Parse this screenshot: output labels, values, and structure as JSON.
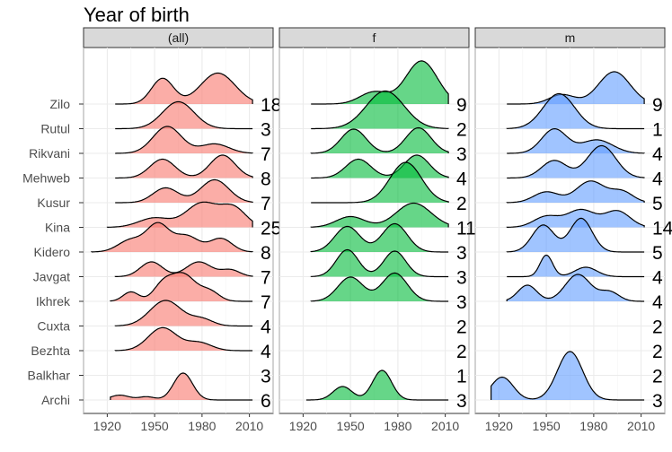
{
  "chart_data": {
    "type": "ridgeline",
    "title": "Year of birth",
    "xlim": [
      1905,
      2025
    ],
    "x_ticks": [
      1920,
      1950,
      1980,
      2010
    ],
    "grid": true,
    "categories": [
      "Archi",
      "Balkhar",
      "Bezhta",
      "Cuxta",
      "Ikhrek",
      "Javgat",
      "Kidero",
      "Kina",
      "Kusur",
      "Mehweb",
      "Rikvani",
      "Rutul",
      "Zilo"
    ],
    "panels": [
      {
        "label": "(all)",
        "color": "#F8766D",
        "rows": [
          {
            "name": "Archi",
            "count": "6",
            "range": [
              1922,
              2012
            ],
            "peaks": [
              [
                1928,
                0.18,
                6
              ],
              [
                1945,
                0.12,
                5
              ],
              [
                1968,
                1.0,
                6
              ]
            ]
          },
          {
            "name": "Balkhar",
            "count": "3",
            "range": [
              null,
              null
            ],
            "peaks": []
          },
          {
            "name": "Bezhta",
            "count": "4",
            "range": [
              1925,
              2012
            ],
            "peaks": [
              [
                1955,
                0.85,
                9
              ],
              [
                1978,
                0.3,
                8
              ]
            ]
          },
          {
            "name": "Cuxta",
            "count": "4",
            "range": [
              1925,
              2012
            ],
            "peaks": [
              [
                1957,
                0.95,
                10
              ],
              [
                1980,
                0.25,
                7
              ]
            ]
          },
          {
            "name": "Ikhrek",
            "count": "7",
            "range": [
              1922,
              2012
            ],
            "peaks": [
              [
                1935,
                0.35,
                5
              ],
              [
                1955,
                0.55,
                6
              ],
              [
                1968,
                1.0,
                8
              ],
              [
                1985,
                0.35,
                6
              ]
            ]
          },
          {
            "name": "Javgat",
            "count": "7",
            "range": [
              1925,
              2012
            ],
            "peaks": [
              [
                1948,
                0.55,
                7
              ],
              [
                1978,
                0.55,
                8
              ],
              [
                1998,
                0.25,
                6
              ]
            ]
          },
          {
            "name": "Kidero",
            "count": "8",
            "range": [
              1910,
              2012
            ],
            "peaks": [
              [
                1935,
                0.45,
                8
              ],
              [
                1952,
                1.0,
                7
              ],
              [
                1970,
                0.6,
                8
              ],
              [
                1992,
                0.5,
                7
              ]
            ]
          },
          {
            "name": "Kina",
            "count": "25",
            "range": [
              1920,
              2012
            ],
            "peaks": [
              [
                1950,
                0.35,
                10
              ],
              [
                1980,
                0.9,
                10
              ],
              [
                2000,
                0.7,
                8
              ]
            ]
          },
          {
            "name": "Kusur",
            "count": "7",
            "range": [
              1925,
              2012
            ],
            "peaks": [
              [
                1957,
                0.55,
                8
              ],
              [
                1988,
                0.85,
                9
              ]
            ]
          },
          {
            "name": "Mehweb",
            "count": "8",
            "range": [
              1925,
              2012
            ],
            "peaks": [
              [
                1955,
                0.7,
                8
              ],
              [
                1993,
                0.85,
                8
              ]
            ]
          },
          {
            "name": "Rikvani",
            "count": "7",
            "range": [
              1925,
              2012
            ],
            "peaks": [
              [
                1958,
                1.0,
                9
              ],
              [
                1988,
                0.35,
                9
              ]
            ]
          },
          {
            "name": "Rutul",
            "count": "3",
            "range": [
              1925,
              2012
            ],
            "peaks": [
              [
                1965,
                1.0,
                10
              ]
            ]
          },
          {
            "name": "Zilo",
            "count": "18",
            "range": [
              1925,
              2012
            ],
            "peaks": [
              [
                1955,
                0.95,
                7
              ],
              [
                1990,
                1.15,
                11
              ]
            ]
          }
        ]
      },
      {
        "label": "f",
        "color": "#00BA38",
        "rows": [
          {
            "name": "Archi",
            "count": "3",
            "range": [
              1922,
              2012
            ],
            "peaks": [
              [
                1945,
                0.5,
                6
              ],
              [
                1970,
                1.1,
                6
              ]
            ]
          },
          {
            "name": "Balkhar",
            "count": "1",
            "range": [
              null,
              null
            ],
            "peaks": []
          },
          {
            "name": "Bezhta",
            "count": "2",
            "range": [
              null,
              null
            ],
            "peaks": []
          },
          {
            "name": "Cuxta",
            "count": "2",
            "range": [
              null,
              null
            ],
            "peaks": []
          },
          {
            "name": "Ikhrek",
            "count": "3",
            "range": [
              1925,
              2012
            ],
            "peaks": [
              [
                1950,
                0.9,
                8
              ],
              [
                1978,
                1.05,
                8
              ]
            ]
          },
          {
            "name": "Javgat",
            "count": "3",
            "range": [
              1925,
              2012
            ],
            "peaks": [
              [
                1948,
                1.0,
                7
              ],
              [
                1978,
                0.95,
                7
              ]
            ]
          },
          {
            "name": "Kidero",
            "count": "3",
            "range": [
              1925,
              2012
            ],
            "peaks": [
              [
                1948,
                0.95,
                8
              ],
              [
                1978,
                1.05,
                8
              ]
            ]
          },
          {
            "name": "Kina",
            "count": "11",
            "range": [
              1925,
              2012
            ],
            "peaks": [
              [
                1950,
                0.4,
                9
              ],
              [
                1990,
                0.9,
                11
              ]
            ]
          },
          {
            "name": "Kusur",
            "count": "2",
            "range": [
              1925,
              2012
            ],
            "peaks": [
              [
                1985,
                1.5,
                10
              ]
            ]
          },
          {
            "name": "Mehweb",
            "count": "4",
            "range": [
              1925,
              2012
            ],
            "peaks": [
              [
                1955,
                0.7,
                8
              ],
              [
                1992,
                0.85,
                8
              ]
            ]
          },
          {
            "name": "Rikvani",
            "count": "3",
            "range": [
              1925,
              2012
            ],
            "peaks": [
              [
                1952,
                0.9,
                8
              ],
              [
                1993,
                0.95,
                8
              ]
            ]
          },
          {
            "name": "Rutul",
            "count": "2",
            "range": [
              1925,
              2012
            ],
            "peaks": [
              [
                1972,
                1.4,
                12
              ]
            ]
          },
          {
            "name": "Zilo",
            "count": "9",
            "range": [
              1925,
              2012
            ],
            "peaks": [
              [
                1965,
                0.45,
                9
              ],
              [
                1995,
                1.6,
                10
              ]
            ]
          }
        ]
      },
      {
        "label": "m",
        "color": "#619CFF",
        "rows": [
          {
            "name": "Archi",
            "count": "3",
            "range": [
              1915,
              2012
            ],
            "peaks": [
              [
                1922,
                0.85,
                7
              ],
              [
                1965,
                1.8,
                8
              ]
            ]
          },
          {
            "name": "Balkhar",
            "count": "2",
            "range": [
              null,
              null
            ],
            "peaks": []
          },
          {
            "name": "Bezhta",
            "count": "2",
            "range": [
              null,
              null
            ],
            "peaks": []
          },
          {
            "name": "Cuxta",
            "count": "2",
            "range": [
              null,
              null
            ],
            "peaks": []
          },
          {
            "name": "Ikhrek",
            "count": "4",
            "range": [
              1925,
              2012
            ],
            "peaks": [
              [
                1938,
                0.6,
                6
              ],
              [
                1970,
                1.0,
                8
              ],
              [
                1990,
                0.35,
                6
              ]
            ]
          },
          {
            "name": "Javgat",
            "count": "4",
            "range": [
              1925,
              2012
            ],
            "peaks": [
              [
                1950,
                0.8,
                4
              ],
              [
                1975,
                0.35,
                7
              ]
            ]
          },
          {
            "name": "Kidero",
            "count": "5",
            "range": [
              1925,
              2012
            ],
            "peaks": [
              [
                1948,
                1.0,
                7
              ],
              [
                1972,
                1.25,
                7
              ]
            ]
          },
          {
            "name": "Kina",
            "count": "14",
            "range": [
              1925,
              2012
            ],
            "peaks": [
              [
                1950,
                0.4,
                8
              ],
              [
                1972,
                0.65,
                9
              ],
              [
                1995,
                0.6,
                8
              ]
            ]
          },
          {
            "name": "Kusur",
            "count": "5",
            "range": [
              1925,
              2012
            ],
            "peaks": [
              [
                1950,
                0.4,
                8
              ],
              [
                1978,
                0.8,
                9
              ],
              [
                1998,
                0.4,
                7
              ]
            ]
          },
          {
            "name": "Mehweb",
            "count": "4",
            "range": [
              1925,
              2012
            ],
            "peaks": [
              [
                1955,
                0.65,
                8
              ],
              [
                1985,
                1.2,
                9
              ]
            ]
          },
          {
            "name": "Rikvani",
            "count": "4",
            "range": [
              1925,
              2012
            ],
            "peaks": [
              [
                1955,
                0.9,
                8
              ],
              [
                1982,
                0.5,
                10
              ]
            ]
          },
          {
            "name": "Rutul",
            "count": "1",
            "range": [
              1925,
              2012
            ],
            "peaks": [
              [
                1958,
                1.3,
                10
              ]
            ]
          },
          {
            "name": "Zilo",
            "count": "9",
            "range": [
              1925,
              2012
            ],
            "peaks": [
              [
                1960,
                0.35,
                8
              ],
              [
                1993,
                1.2,
                10
              ]
            ]
          }
        ]
      }
    ]
  }
}
